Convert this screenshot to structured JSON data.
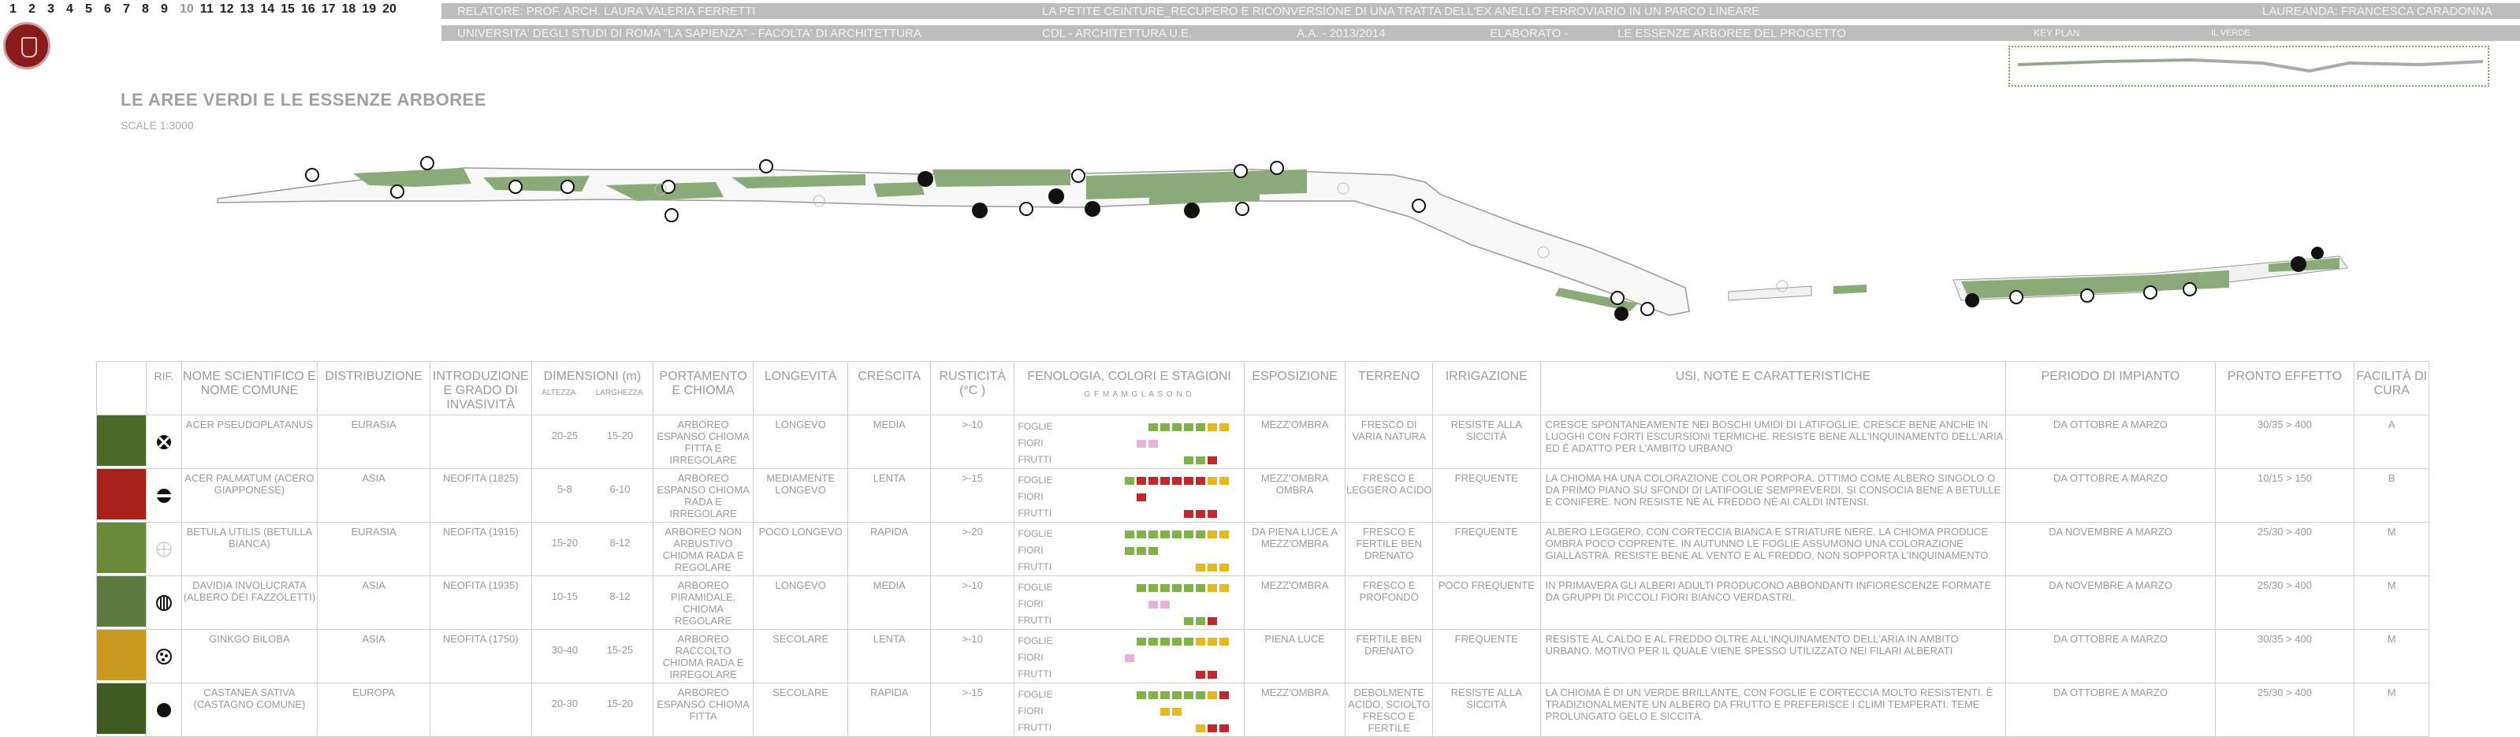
{
  "header": {
    "pages": [
      "1",
      "2",
      "3",
      "4",
      "5",
      "6",
      "7",
      "8",
      "9",
      "10",
      "11",
      "12",
      "13",
      "14",
      "15",
      "16",
      "17",
      "18",
      "19",
      "20"
    ],
    "current_page": "10",
    "relatore": "RELATORE: PROF. ARCH. LAURA VALERIA FERRETTI",
    "thesis_title": "LA PETITE CEINTURE_RECUPERO E RICONVERSIONE DI UNA TRATTA DELL'EX ANELLO FERROVIARIO IN UN PARCO LINEARE",
    "laureanda": "LAUREANDA: FRANCESCA CARADONNA",
    "university": "UNIVERSITA' DEGLI STUDI DI ROMA \"LA SAPIENZA\"  -  FACOLTA' DI ARCHITETTURA",
    "course": "CDL - ARCHITETTURA U.E.",
    "year": "A.A.  -  2013/2014",
    "elaborato": "ELABORATO    -",
    "elaborato_title": "LE ESSENZE ARBOREE DEL PROGETTO",
    "key_plan": "KEY PLAN",
    "il_verde": "IL VERDE"
  },
  "page_title": "LE AREE VERDI E LE ESSENZE ARBOREE",
  "scale": "SCALE  1:3000",
  "colors": {
    "green": "#8aab78",
    "band": "#bdbdbd",
    "red": "#c0282a",
    "yellow": "#e8b820",
    "lightgreen": "#7fb247",
    "pink": "#e6b3dd"
  },
  "table": {
    "headers": {
      "rif": "RIF.",
      "nome": "NOME SCIENTIFICO E NOME COMUNE",
      "distribuzione": "DISTRIBUZIONE",
      "introduzione": "INTRODUZIONE E GRADO DI INVASIVITÀ",
      "dimensioni": "DIMENSIONI (m)",
      "altezza": "ALTEZZA",
      "larghezza": "LARGHEZZA",
      "portamento": "PORTAMENTO E  CHIOMA",
      "longevita": "LONGEVITÀ",
      "crescita": "CRESCITA",
      "rusticita": "RUSTICITÀ (°C )",
      "fenologia": "FENOLOGIA, COLORI E STAGIONI",
      "months": "G F M A M G L A S O N D",
      "esposizione": "ESPOSIZIONE",
      "terreno": "TERRENO",
      "irrigazione": "IRRIGAZIONE",
      "usi": "USI, NOTE E CARATTERISTICHE",
      "periodo": "PERIODO DI IMPIANTO",
      "pronto": "PRONTO EFFETTO",
      "facilita": "FACILITÀ DI CURA"
    },
    "phen_labels": [
      "FOGLIE",
      "FIORI",
      "FRUTTI"
    ],
    "rows": [
      {
        "icon": "cross-circle",
        "photo": "#4b6a2a",
        "nome": "ACER PSEUDOPLATANUS",
        "distr": "EURASIA",
        "intro": "",
        "alt": "20-25",
        "larg": "15-20",
        "port": "ARBOREO ESPANSO CHIOMA FITTA E IRREGOLARE",
        "long": "LONGEVO",
        "cresc": "MEDIA",
        "rust": ">-10",
        "foglie": [
          "",
          "",
          "",
          "",
          "g",
          "g",
          "g",
          "g",
          "g",
          "y",
          "y",
          ""
        ],
        "fiori": [
          "",
          "",
          "",
          "p",
          "p",
          "",
          "",
          "",
          "",
          "",
          "",
          ""
        ],
        "frutti": [
          "",
          "",
          "",
          "",
          "",
          "",
          "",
          "g",
          "g",
          "r",
          "",
          ""
        ],
        "espo": "MEZZ'OMBRA",
        "terr": "FRESCO DI VARIA NATURA",
        "irr": "RESISTE ALLA SICCITÀ",
        "note": "CRESCE SPONTANEAMENTE NEI BOSCHI UMIDI DI LATIFOGLIE. CRESCE BENE ANCHE IN LUOGHI CON FORTI ESCURSIONI TERMICHE. RESISTE BENE ALL'INQUINAMENTO DELL'ARIA ED È ADATTO PER L'AMBITO URBANO",
        "periodo": "DA OTTOBRE A MARZO",
        "pronto": "30/35 > 400",
        "fac": "A"
      },
      {
        "icon": "half-dark",
        "photo": "#a8201a",
        "nome": "ACER PALMATUM (ACERO GIAPPONESE)",
        "distr": "ASIA",
        "intro": "NEOFITA (1825)",
        "alt": "5-8",
        "larg": "6-10",
        "port": "ARBOREO ESPANSO CHIOMA RADA E IRREGOLARE",
        "long": "MEDIAMENTE LONGEVO",
        "cresc": "LENTA",
        "rust": ">-15",
        "foglie": [
          "",
          "",
          "g",
          "r",
          "r",
          "r",
          "r",
          "r",
          "r",
          "y",
          "y",
          ""
        ],
        "fiori": [
          "",
          "",
          "",
          "r",
          "",
          "",
          "",
          "",
          "",
          "",
          "",
          ""
        ],
        "frutti": [
          "",
          "",
          "",
          "",
          "",
          "",
          "",
          "r",
          "r",
          "r",
          "",
          ""
        ],
        "espo": "MEZZ'OMBRA OMBRA",
        "terr": "FRESCO E LEGGERO ACIDO",
        "irr": "FREQUENTE",
        "note": "LA CHIOMA HA UNA COLORAZIONE COLOR PORPORA. OTTIMO COME ALBERO SINGOLO O DA PRIMO PIANO SU SFONDI DI LATIFOGLIE SEMPREVERDI. SI CONSOCIA BENE A BETULLE E CONIFERE. NON RESISTE NÈ AL FREDDO NÈ AI CALDI INTENSI.",
        "periodo": "DA OTTOBRE A MARZO",
        "pronto": "10/15 > 150",
        "fac": "B"
      },
      {
        "icon": "grid-circle",
        "photo": "#6a8a3a",
        "nome": "BETULA UTILIS (BETULLA BIANCA)",
        "distr": "EURASIA",
        "intro": "NEOFITA (1915)",
        "alt": "15-20",
        "larg": "8-12",
        "port": "ARBOREO NON ARBUSTIVO CHIOMA RADA E REGOLARE",
        "long": "POCO LONGEVO",
        "cresc": "RAPIDA",
        "rust": ">-20",
        "foglie": [
          "",
          "",
          "g",
          "g",
          "g",
          "g",
          "g",
          "g",
          "g",
          "y",
          "y",
          ""
        ],
        "fiori": [
          "",
          "",
          "g",
          "g",
          "g",
          "",
          "",
          "",
          "",
          "",
          "",
          ""
        ],
        "frutti": [
          "",
          "",
          "",
          "",
          "",
          "",
          "",
          "",
          "y",
          "y",
          "y",
          ""
        ],
        "espo": "DA PIENA LUCE A MEZZ'OMBRA",
        "terr": "FRESCO E FERTILE BEN DRENATO",
        "irr": "FREQUENTE",
        "note": "ALBERO LEGGERO, CON CORTECCIA BIANCA E STRIATURE NERE. LA CHIOMA PRODUCE OMBRA POCO COPRENTE. IN AUTUNNO LE FOGLIE ASSUMONO UNA COLORAZIONE GIALLASTRA. RESISTE BENE AL VENTO E AL FREDDO, NON SOPPORTA L'INQUINAMENTO",
        "periodo": "DA NOVEMBRE A MARZO",
        "pronto": "25/30 > 400",
        "fac": "M"
      },
      {
        "icon": "striped-circle",
        "photo": "#5a7a40",
        "nome": "DAVIDIA INVOLUCRATA (ALBERO DEI FAZZOLETTI)",
        "distr": "ASIA",
        "intro": "NEOFITA (1935)",
        "alt": "10-15",
        "larg": "8-12",
        "port": "ARBOREO PIRAMIDALE, CHIOMA REGOLARE",
        "long": "LONGEVO",
        "cresc": "MEDIA",
        "rust": ">-10",
        "foglie": [
          "",
          "",
          "",
          "g",
          "g",
          "g",
          "g",
          "g",
          "g",
          "y",
          "y",
          ""
        ],
        "fiori": [
          "",
          "",
          "",
          "",
          "p",
          "p",
          "",
          "",
          "",
          "",
          "",
          ""
        ],
        "frutti": [
          "",
          "",
          "",
          "",
          "",
          "",
          "",
          "g",
          "g",
          "r",
          "",
          ""
        ],
        "espo": "MEZZ'OMBRA",
        "terr": "FRESCO E PROFONDO",
        "irr": "POCO FREQUENTE",
        "note": "IN PRIMAVERA GLI ALBERI ADULTI PRODUCONO ABBONDANTI INFIORESCENZE FORMATE DA GRUPPI DI PICCOLI FIORI BIANCO VERDASTRI.",
        "periodo": "DA NOVEMBRE A MARZO",
        "pronto": "25/30 > 400",
        "fac": "M"
      },
      {
        "icon": "dotted-circle",
        "photo": "#c89a20",
        "nome": "GINKGO BILOBA",
        "distr": "ASIA",
        "intro": "NEOFITA (1750)",
        "alt": "30-40",
        "larg": "15-25",
        "port": "ARBOREO RACCOLTO CHIOMA RADA E IRREGOLARE",
        "long": "SECOLARE",
        "cresc": "LENTA",
        "rust": ">-10",
        "foglie": [
          "",
          "",
          "",
          "g",
          "g",
          "g",
          "g",
          "g",
          "y",
          "y",
          "y",
          ""
        ],
        "fiori": [
          "",
          "",
          "p",
          "",
          "",
          "",
          "",
          "",
          "",
          "",
          "",
          ""
        ],
        "frutti": [
          "",
          "",
          "",
          "",
          "",
          "",
          "",
          "",
          "r",
          "r",
          "",
          ""
        ],
        "espo": "PIENA LUCE",
        "terr": "FERTILE BEN DRENATO",
        "irr": "FREQUENTE",
        "note": "RESISTE AL CALDO E AL FREDDO OLTRE ALL'INQUINAMENTO DELL'ARIA IN AMBITO URBANO. MOTIVO PER IL QUALE VIENE SPESSO UTILIZZATO NEI FILARI ALBERATI",
        "periodo": "DA OTTOBRE A MARZO",
        "pronto": "30/35 > 400",
        "fac": "M"
      },
      {
        "icon": "solid-circle",
        "photo": "#3e5a20",
        "nome": "CASTANEA SATIVA (CASTAGNO COMUNE)",
        "distr": "EUROPA",
        "intro": "",
        "alt": "20-30",
        "larg": "15-20",
        "port": "ARBOREO ESPANSO CHIOMA FITTA",
        "long": "SECOLARE",
        "cresc": "RAPIDA",
        "rust": ">-15",
        "foglie": [
          "",
          "",
          "",
          "g",
          "g",
          "g",
          "g",
          "g",
          "g",
          "y",
          "r",
          ""
        ],
        "fiori": [
          "",
          "",
          "",
          "",
          "",
          "y",
          "y",
          "",
          "",
          "",
          "",
          ""
        ],
        "frutti": [
          "",
          "",
          "",
          "",
          "",
          "",
          "",
          "",
          "y",
          "r",
          "r",
          ""
        ],
        "espo": "MEZZ'OMBRA",
        "terr": "DEBOLMENTE ACIDO, SCIOLTO FRESCO E FERTILE",
        "irr": "RESISTE ALLA SICCITÀ",
        "note": "LA CHIOMA È DI UN VERDE BRILLANTE, CON FOGLIE E CORTECCIA MOLTO RESISTENTI. È TRADIZIONALMENTE UN ALBERO DA FRUTTO E PREFERISCE I CLIMI TEMPERATI. TEME PROLUNGATO GELO E SICCITÀ.",
        "periodo": "DA OTTOBRE A MARZO",
        "pronto": "25/30 > 400",
        "fac": "M"
      }
    ]
  }
}
